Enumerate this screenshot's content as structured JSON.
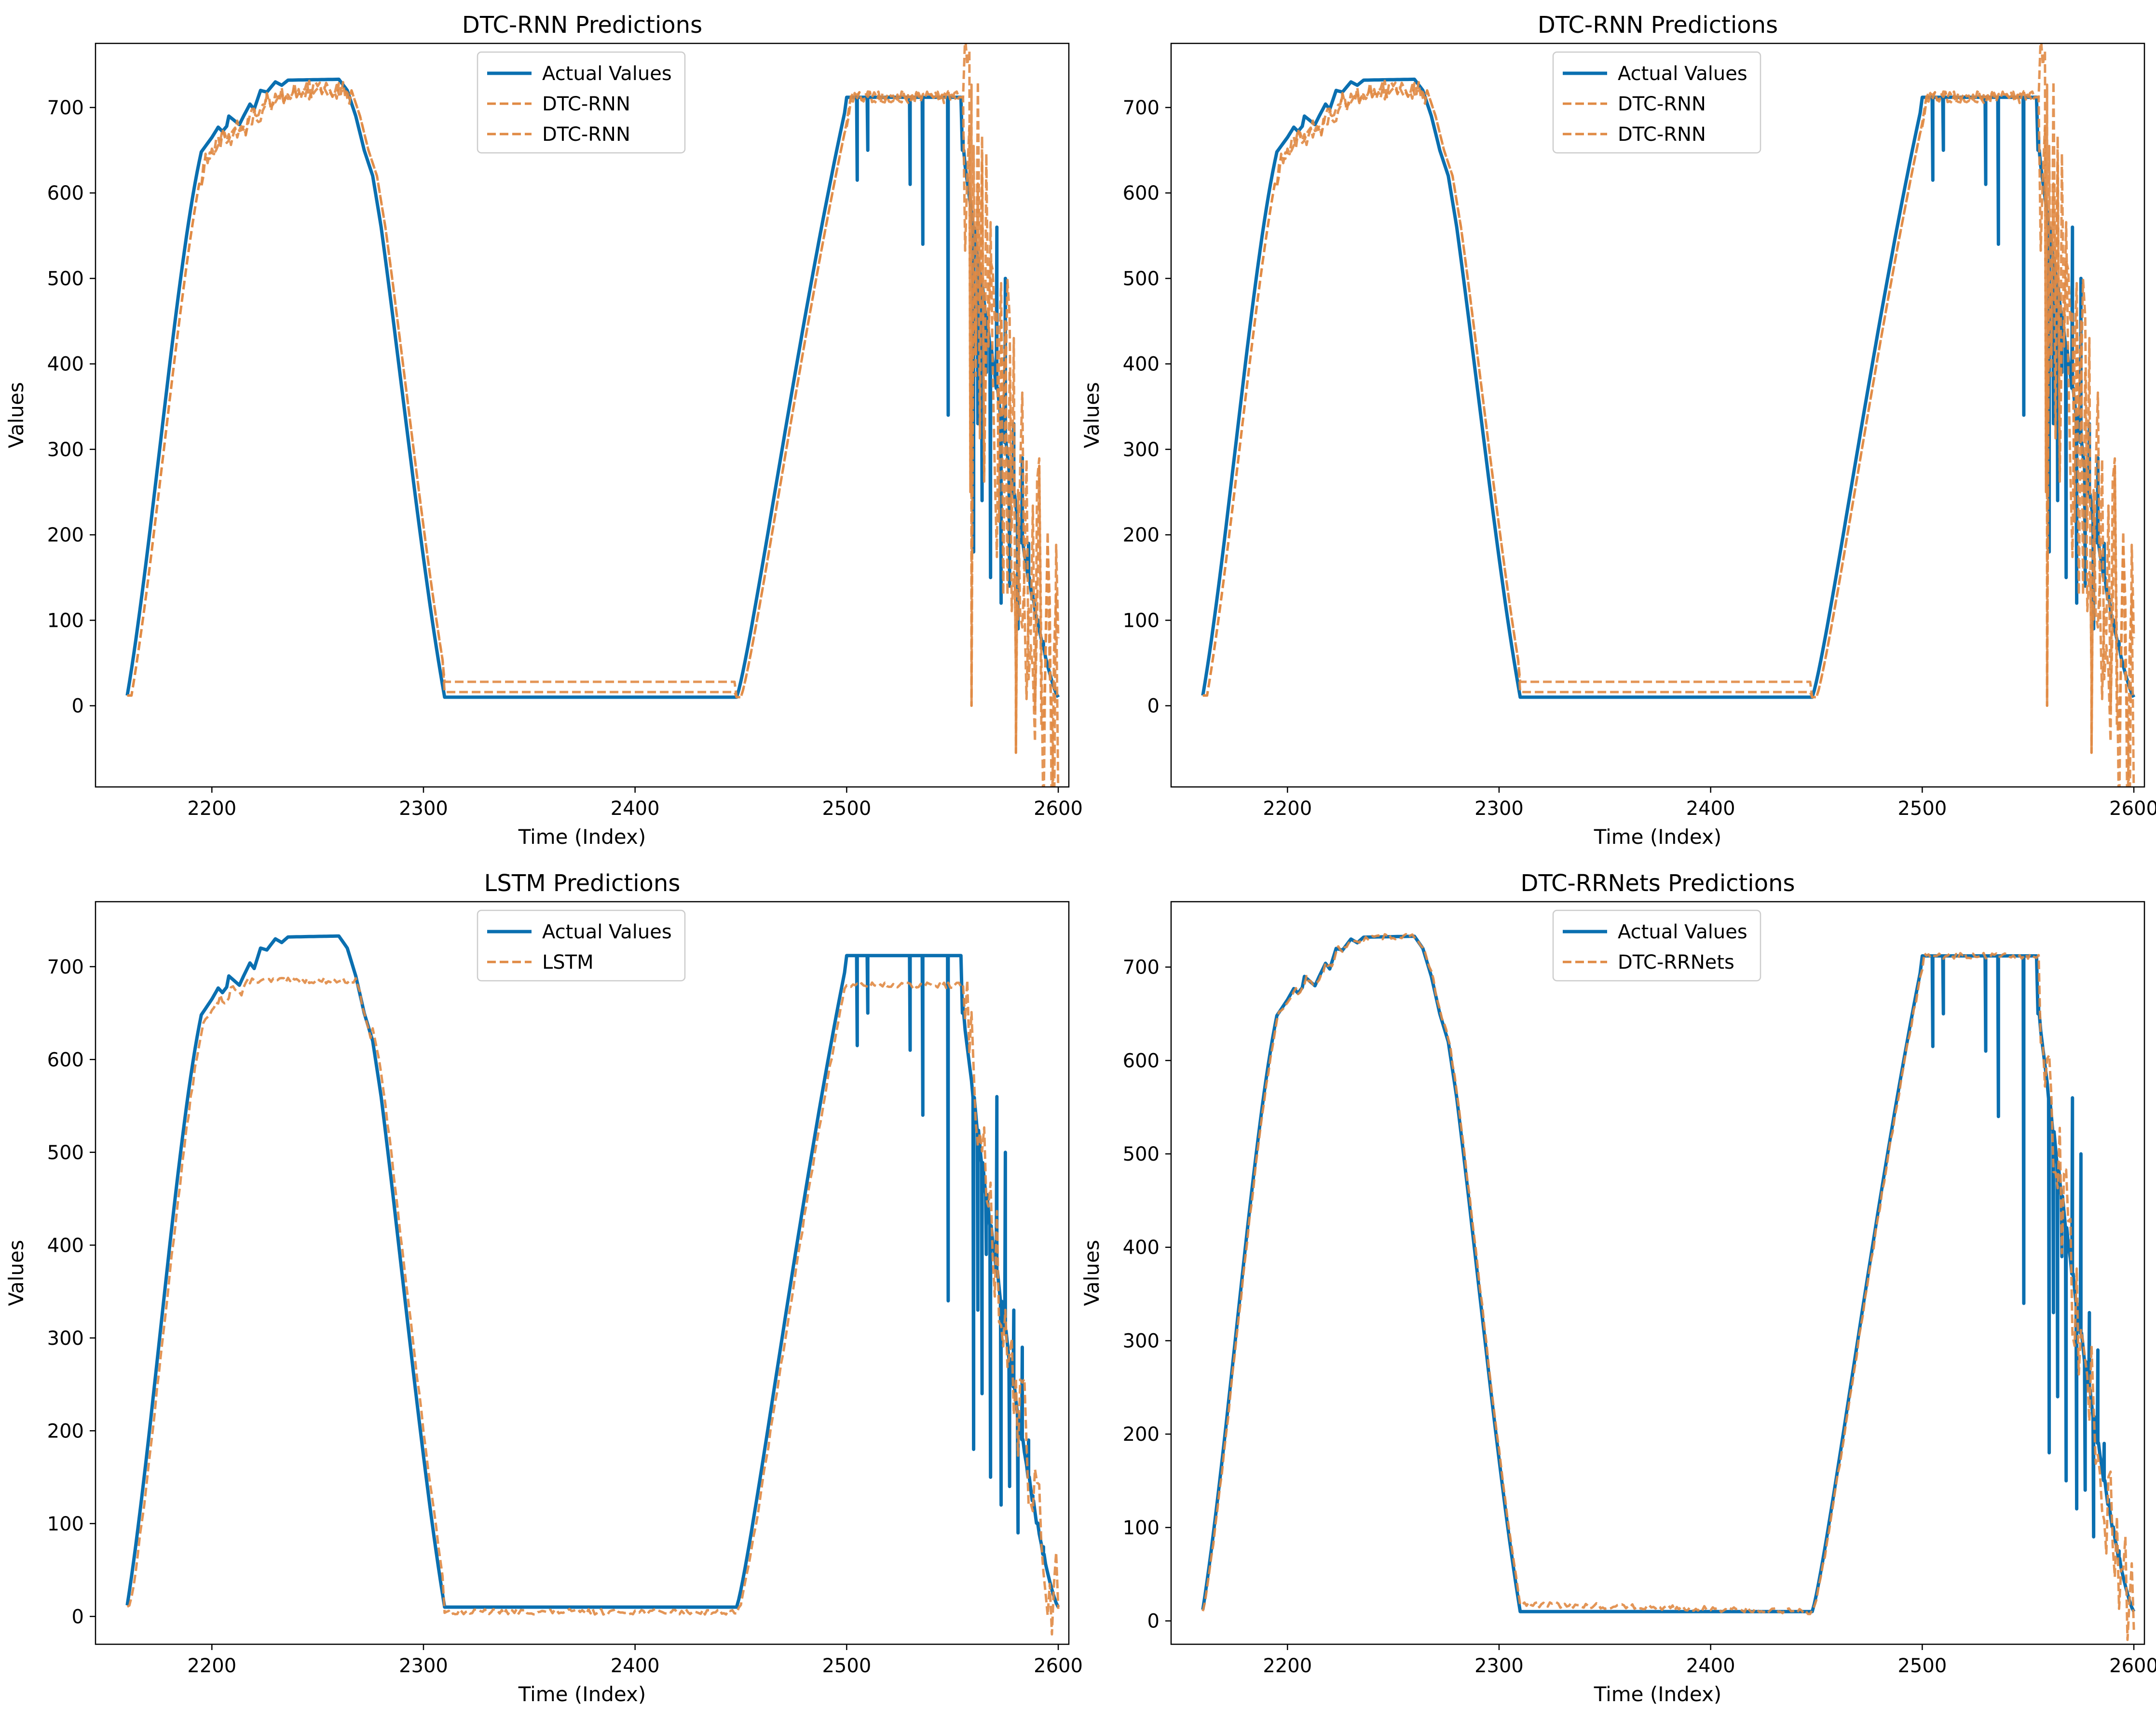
{
  "colors": {
    "actual": "#0a6fb0",
    "predicted": "#e08a44",
    "frame": "#000000",
    "legend_edge": "#cccccc"
  },
  "chart_data": [
    {
      "type": "line",
      "title": "DTC-RNN Predictions",
      "xlabel": "Time (Index)",
      "ylabel": "Values",
      "xlim": [
        2145,
        2605
      ],
      "ylim": [
        -95,
        775
      ],
      "xticks": [
        2200,
        2300,
        2400,
        2500,
        2600
      ],
      "yticks": [
        0,
        100,
        200,
        300,
        400,
        500,
        600,
        700
      ],
      "legend": "upper-center",
      "series": [
        {
          "name": "Actual Values",
          "style": "solid",
          "color": "actual"
        },
        {
          "name": "DTC-RNN",
          "style": "dashed",
          "color": "predicted"
        },
        {
          "name": "DTC-RNN",
          "style": "dashed",
          "color": "predicted"
        }
      ],
      "noise": 1.0
    },
    {
      "type": "line",
      "title": "DTC-RNN Predictions",
      "xlabel": "Time (Index)",
      "ylabel": "Values",
      "xlim": [
        2145,
        2605
      ],
      "ylim": [
        -95,
        775
      ],
      "xticks": [
        2200,
        2300,
        2400,
        2500,
        2600
      ],
      "yticks": [
        0,
        100,
        200,
        300,
        400,
        500,
        600,
        700
      ],
      "legend": "upper-center",
      "series": [
        {
          "name": "Actual Values",
          "style": "solid",
          "color": "actual"
        },
        {
          "name": "DTC-RNN",
          "style": "dashed",
          "color": "predicted"
        },
        {
          "name": "DTC-RNN",
          "style": "dashed",
          "color": "predicted"
        }
      ],
      "noise": 1.0
    },
    {
      "type": "line",
      "title": "LSTM Predictions",
      "xlabel": "Time (Index)",
      "ylabel": "Values",
      "xlim": [
        2145,
        2605
      ],
      "ylim": [
        -30,
        770
      ],
      "xticks": [
        2200,
        2300,
        2400,
        2500,
        2600
      ],
      "yticks": [
        0,
        100,
        200,
        300,
        400,
        500,
        600,
        700
      ],
      "legend": "upper-center",
      "series": [
        {
          "name": "Actual Values",
          "style": "solid",
          "color": "actual"
        },
        {
          "name": "LSTM",
          "style": "dashed",
          "color": "predicted"
        }
      ],
      "noise": 0.35
    },
    {
      "type": "line",
      "title": "DTC-RRNets Predictions",
      "xlabel": "Time (Index)",
      "ylabel": "Values",
      "xlim": [
        2145,
        2605
      ],
      "ylim": [
        -25,
        770
      ],
      "xticks": [
        2200,
        2300,
        2400,
        2500,
        2600
      ],
      "yticks": [
        0,
        100,
        200,
        300,
        400,
        500,
        600,
        700
      ],
      "legend": "upper-center",
      "series": [
        {
          "name": "Actual Values",
          "style": "solid",
          "color": "actual"
        },
        {
          "name": "DTC-RRNets",
          "style": "dashed",
          "color": "predicted"
        }
      ],
      "noise": 0.5
    }
  ]
}
